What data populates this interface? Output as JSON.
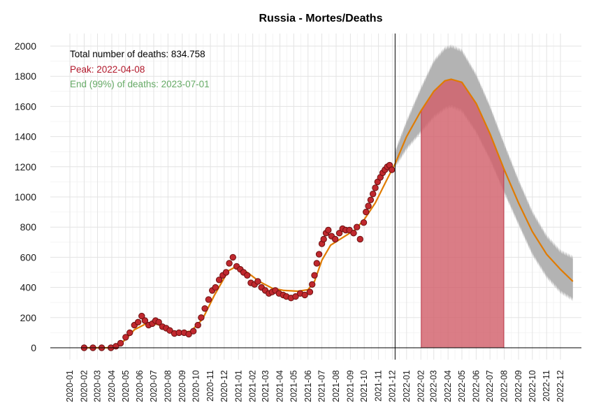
{
  "chart_data": {
    "type": "scatter",
    "title": "Russia - Mortes/Deaths",
    "xlabel": "",
    "ylabel": "",
    "ylim": [
      0,
      2000
    ],
    "yticks": [
      0,
      200,
      400,
      600,
      800,
      1000,
      1200,
      1400,
      1600,
      1800,
      2000
    ],
    "xticks": [
      "2020-01",
      "2020-02",
      "2020-03",
      "2020-04",
      "2020-05",
      "2020-06",
      "2020-07",
      "2020-08",
      "2020-09",
      "2020-10",
      "2020-11",
      "2020-12",
      "2021-01",
      "2021-02",
      "2021-03",
      "2021-04",
      "2021-05",
      "2021-06",
      "2021-07",
      "2021-08",
      "2021-09",
      "2021-10",
      "2021-11",
      "2021-12",
      "2022-01",
      "2022-02",
      "2022-03",
      "2022-04",
      "2022-05",
      "2022-06",
      "2022-07",
      "2022-08",
      "2022-09",
      "2022-10",
      "2022-11",
      "2022-12"
    ],
    "grid": true,
    "annotations": {
      "total": "Total number of deaths: 834.758",
      "peak": "Peak: 2022-04-08",
      "end": "End (99%) of deaths: 2023-07-01"
    },
    "colors": {
      "points_fill": "#c0282e",
      "points_edge": "#6b1010",
      "smooth_line": "#e07b00",
      "forecast_band": "#b3b3b3",
      "peak_area": "#d2606b",
      "annotation_total": "#000000",
      "annotation_peak": "#b2182b",
      "annotation_end": "#66aa66"
    },
    "vline_date": "2021-12-07",
    "peak_area_range": [
      "2022-02-02",
      "2022-07-31"
    ],
    "smooth_curve": {
      "x": [
        "2020-02-01",
        "2020-03-01",
        "2020-03-25",
        "2020-04-10",
        "2020-05-01",
        "2020-05-20",
        "2020-06-15",
        "2020-07-10",
        "2020-08-01",
        "2020-08-25",
        "2020-09-20",
        "2020-10-15",
        "2020-11-10",
        "2020-12-10",
        "2020-12-25",
        "2021-01-20",
        "2021-02-15",
        "2021-03-15",
        "2021-04-10",
        "2021-05-10",
        "2021-06-01",
        "2021-06-15",
        "2021-07-01",
        "2021-07-20",
        "2021-08-15",
        "2021-09-10",
        "2021-10-01",
        "2021-10-25",
        "2021-11-20",
        "2021-12-07",
        "2022-01-01",
        "2022-02-01",
        "2022-03-01",
        "2022-03-25",
        "2022-04-08",
        "2022-05-01",
        "2022-06-01",
        "2022-07-01",
        "2022-08-01",
        "2022-09-01",
        "2022-10-01",
        "2022-11-01",
        "2022-12-01",
        "2022-12-28"
      ],
      "y": [
        0,
        0,
        0,
        5,
        55,
        120,
        160,
        155,
        120,
        100,
        110,
        190,
        350,
        510,
        535,
        500,
        440,
        395,
        380,
        375,
        385,
        440,
        580,
        680,
        730,
        780,
        850,
        960,
        1120,
        1220,
        1400,
        1570,
        1700,
        1770,
        1780,
        1760,
        1620,
        1420,
        1180,
        960,
        770,
        620,
        520,
        440
      ]
    },
    "forecast_band": {
      "x": [
        "2021-12-07",
        "2022-01-01",
        "2022-02-01",
        "2022-03-01",
        "2022-03-25",
        "2022-04-08",
        "2022-05-01",
        "2022-06-01",
        "2022-07-01",
        "2022-08-01",
        "2022-09-01",
        "2022-10-01",
        "2022-11-01",
        "2022-12-01",
        "2022-12-28"
      ],
      "upper": [
        1300,
        1500,
        1720,
        1900,
        1985,
        2000,
        1970,
        1810,
        1600,
        1350,
        1110,
        900,
        740,
        640,
        600
      ],
      "lower": [
        1200,
        1320,
        1430,
        1530,
        1585,
        1600,
        1570,
        1430,
        1250,
        1030,
        820,
        620,
        470,
        370,
        320
      ]
    },
    "observed_points": {
      "x": [
        "2020-02-01",
        "2020-02-20",
        "2020-03-10",
        "2020-03-30",
        "2020-04-10",
        "2020-04-20",
        "2020-05-01",
        "2020-05-10",
        "2020-05-20",
        "2020-05-28",
        "2020-06-05",
        "2020-06-12",
        "2020-06-20",
        "2020-06-28",
        "2020-07-05",
        "2020-07-12",
        "2020-07-20",
        "2020-07-28",
        "2020-08-05",
        "2020-08-15",
        "2020-08-25",
        "2020-09-05",
        "2020-09-15",
        "2020-09-25",
        "2020-10-05",
        "2020-10-12",
        "2020-10-20",
        "2020-10-28",
        "2020-11-05",
        "2020-11-12",
        "2020-11-20",
        "2020-11-28",
        "2020-12-05",
        "2020-12-12",
        "2020-12-20",
        "2020-12-28",
        "2021-01-05",
        "2021-01-12",
        "2021-01-20",
        "2021-01-28",
        "2021-02-05",
        "2021-02-12",
        "2021-02-20",
        "2021-02-28",
        "2021-03-08",
        "2021-03-15",
        "2021-03-22",
        "2021-03-30",
        "2021-04-08",
        "2021-04-15",
        "2021-04-25",
        "2021-05-05",
        "2021-05-15",
        "2021-05-25",
        "2021-06-05",
        "2021-06-10",
        "2021-06-15",
        "2021-06-20",
        "2021-06-25",
        "2021-07-01",
        "2021-07-05",
        "2021-07-10",
        "2021-07-15",
        "2021-07-22",
        "2021-07-30",
        "2021-08-08",
        "2021-08-15",
        "2021-08-22",
        "2021-08-30",
        "2021-09-08",
        "2021-09-15",
        "2021-09-22",
        "2021-09-30",
        "2021-10-05",
        "2021-10-10",
        "2021-10-15",
        "2021-10-20",
        "2021-10-25",
        "2021-10-30",
        "2021-11-05",
        "2021-11-10",
        "2021-11-15",
        "2021-11-20",
        "2021-11-25",
        "2021-11-30"
      ],
      "y": [
        0,
        0,
        0,
        0,
        10,
        30,
        70,
        100,
        150,
        170,
        210,
        180,
        150,
        160,
        180,
        170,
        140,
        130,
        115,
        95,
        100,
        100,
        90,
        110,
        150,
        200,
        260,
        320,
        380,
        400,
        450,
        480,
        500,
        560,
        600,
        540,
        520,
        500,
        480,
        430,
        420,
        440,
        400,
        380,
        360,
        370,
        380,
        360,
        350,
        340,
        330,
        340,
        360,
        350,
        370,
        420,
        480,
        560,
        620,
        690,
        720,
        760,
        780,
        740,
        720,
        760,
        790,
        780,
        780,
        760,
        800,
        720,
        830,
        900,
        940,
        980,
        1020,
        1060,
        1100,
        1130,
        1160,
        1180,
        1200,
        1210,
        1180
      ]
    }
  }
}
